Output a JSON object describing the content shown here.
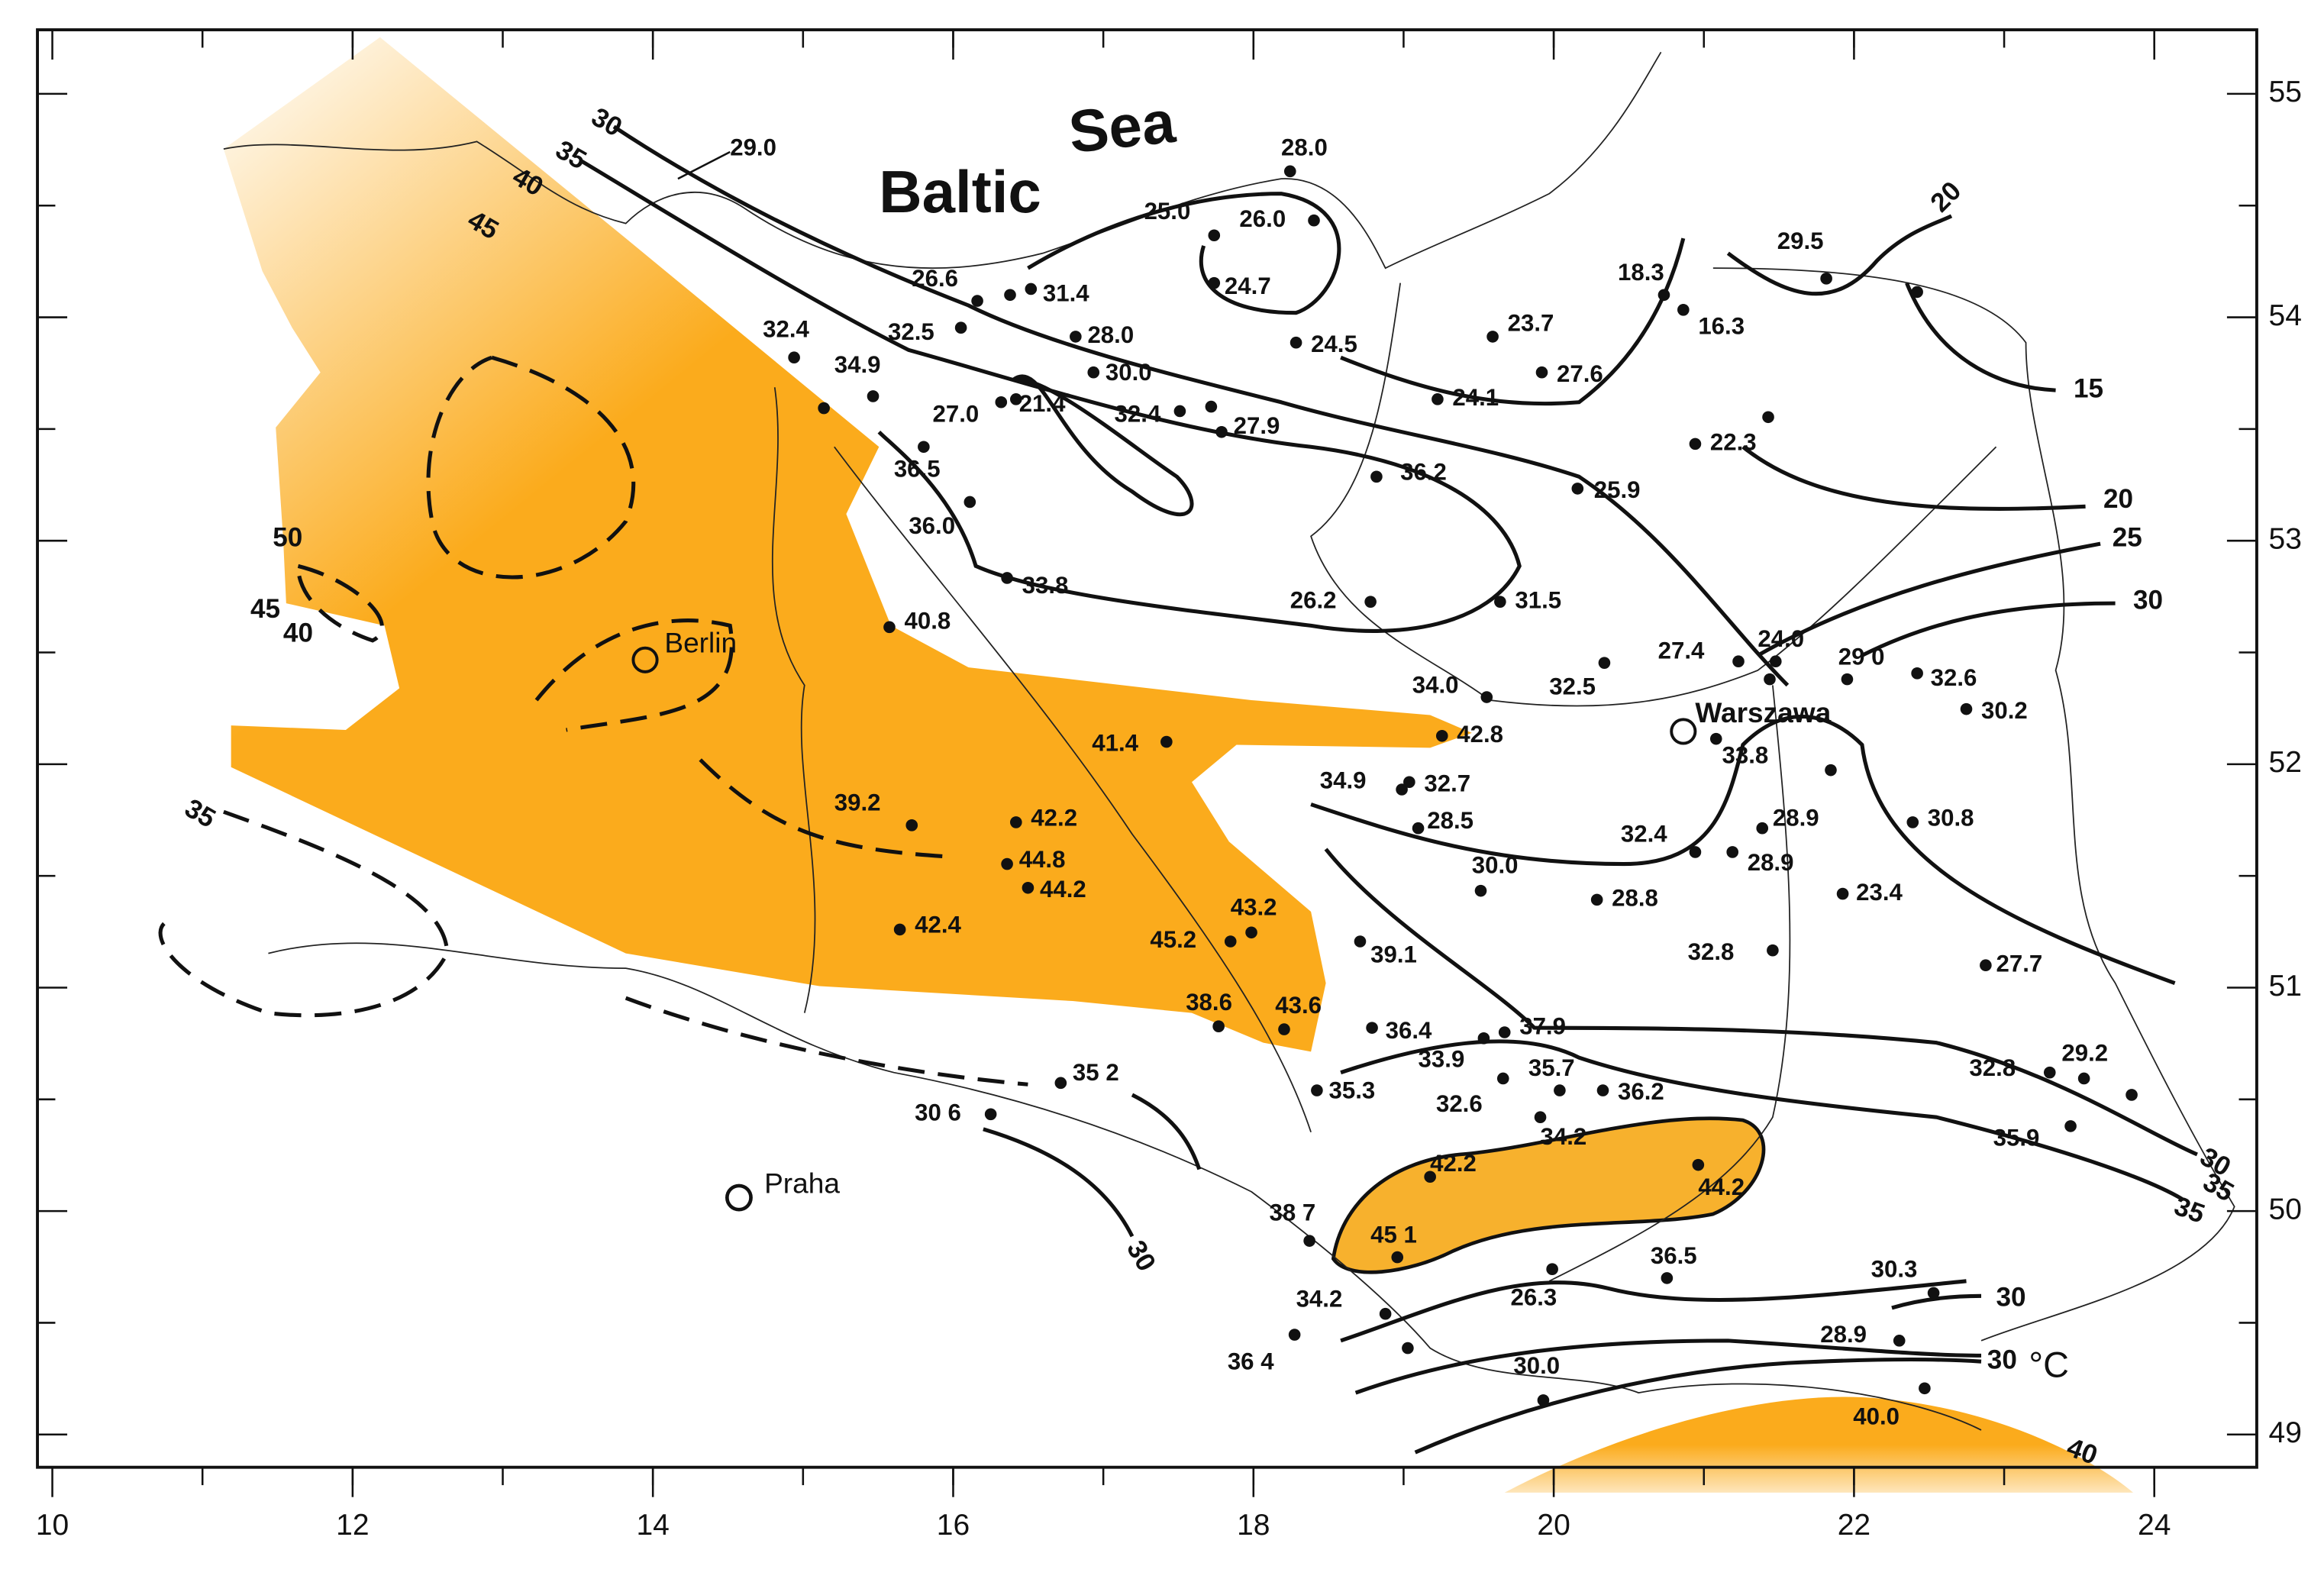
{
  "map": {
    "sea": {
      "line1": "Baltic",
      "line2": "Sea"
    },
    "cities": [
      "Berlin",
      "Warszawa",
      "Praha"
    ],
    "unit": "°C",
    "longitude_ticks": [
      10,
      12,
      14,
      16,
      18,
      20,
      22,
      24
    ],
    "latitude_ticks": [
      55,
      54,
      53,
      52,
      51,
      50,
      49
    ],
    "stations": [
      "29.0",
      "28.0",
      "25.0",
      "26.0",
      "24.7",
      "26.6",
      "31.4",
      "32.4",
      "32.5",
      "28.0",
      "34.9",
      "24.5",
      "23.7",
      "18.3",
      "16.3",
      "29.5",
      "30.0",
      "27.0",
      "21.4",
      "32.4",
      "27.9",
      "24.1",
      "27.6",
      "22.3",
      "36.5",
      "36.2",
      "25.9",
      "36.0",
      "33.8",
      "26.2",
      "31.5",
      "40.8",
      "27.4",
      "24.0",
      "29 0",
      "32.6",
      "32.5",
      "34.0",
      "30.2",
      "41.4",
      "42.8",
      "33.8",
      "34.9",
      "32.7",
      "39.2",
      "42.2",
      "28.5",
      "28.9",
      "30.8",
      "32.4",
      "28.9",
      "44.8",
      "44.2",
      "30.0",
      "28.8",
      "23.4",
      "42.4",
      "43.2",
      "45.2",
      "39.1",
      "32.8",
      "27.7",
      "38.6",
      "43.6",
      "36.4",
      "37.9",
      "33.9",
      "35.7",
      "32.6",
      "36.2",
      "35.3",
      "35 2",
      "34.2",
      "32.8",
      "29.2",
      "30 6",
      "35.9",
      "42.2",
      "44.2",
      "38 7",
      "45 1",
      "36.5",
      "26.3",
      "30.3",
      "34.2",
      "28.9",
      "36 4",
      "30.0",
      "40.0"
    ],
    "isoline_labels": [
      "30",
      "35",
      "40",
      "45",
      "50",
      "45",
      "40",
      "35",
      "20",
      "15",
      "20",
      "25",
      "30",
      "30",
      "30",
      "35",
      "35",
      "30",
      "30",
      "40"
    ]
  }
}
